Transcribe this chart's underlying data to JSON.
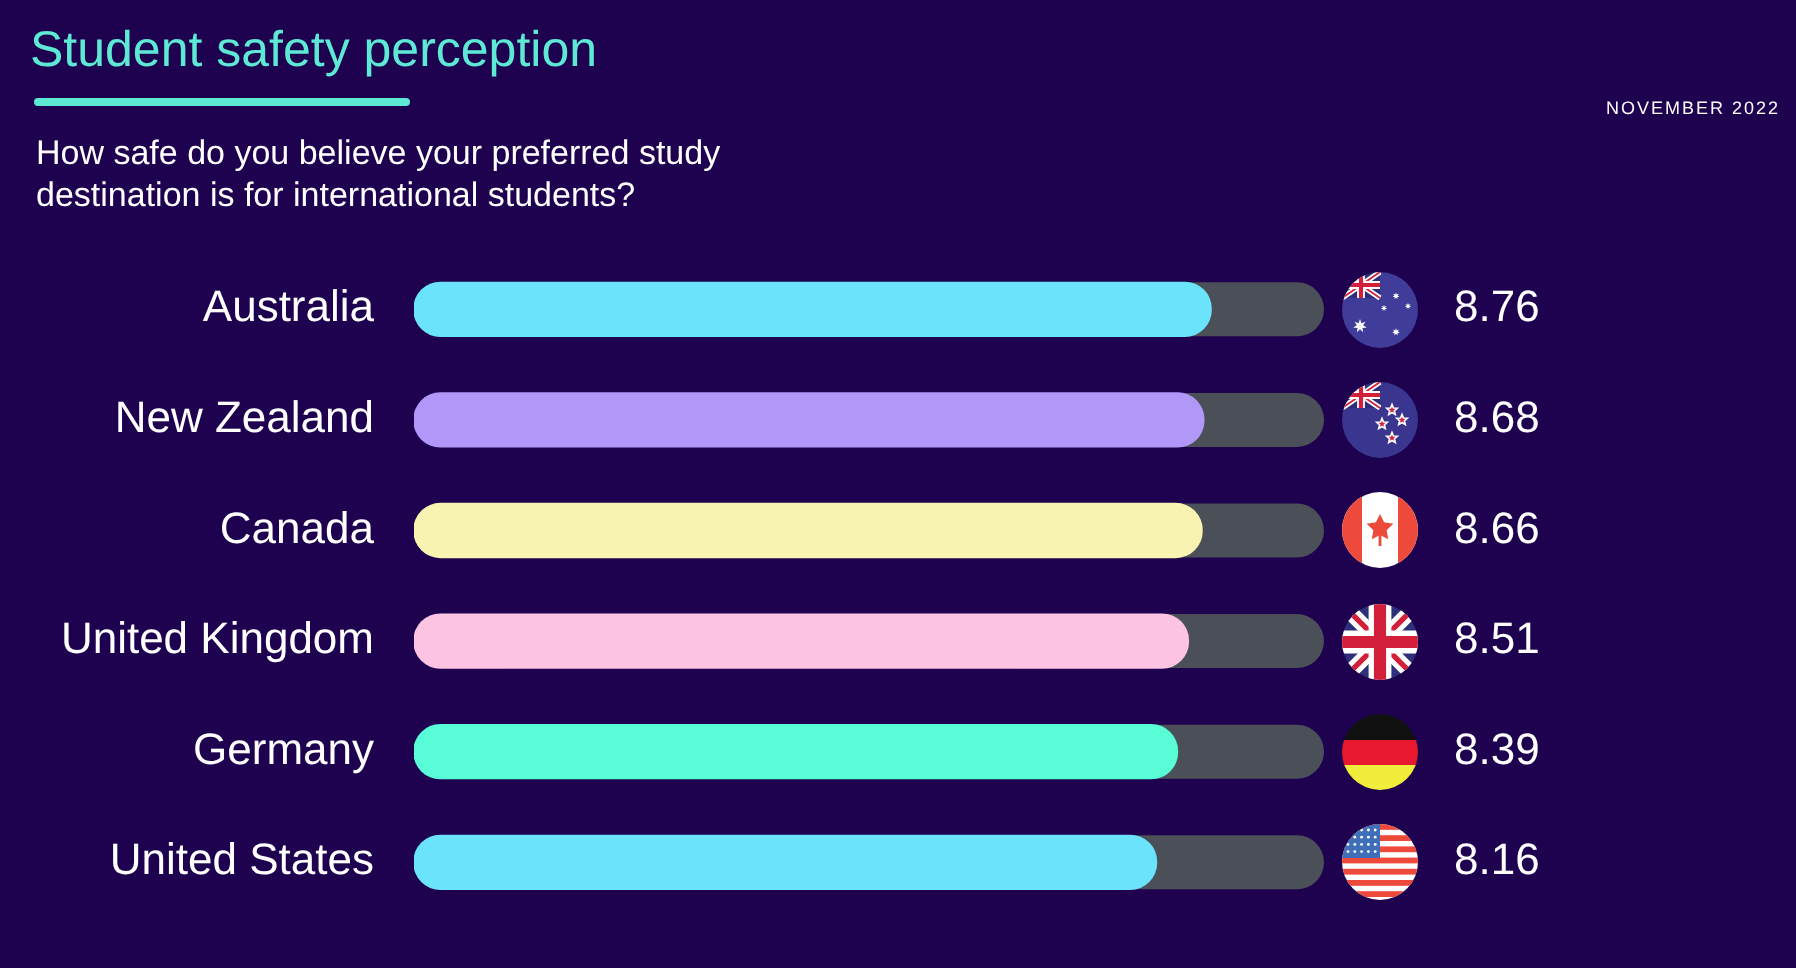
{
  "chart_data": {
    "type": "bar",
    "orientation": "horizontal",
    "title": "Student safety perception",
    "subtitle": "How safe do you believe your preferred study destination is for international students?",
    "annotations": [
      "NOVEMBER 2022"
    ],
    "categories": [
      "Australia",
      "New Zealand",
      "Canada",
      "United Kingdom",
      "Germany",
      "United States"
    ],
    "values": [
      8.76,
      8.68,
      8.66,
      8.51,
      8.39,
      8.16
    ],
    "colors": [
      "#6be3fb",
      "#b197f7",
      "#f8f3b1",
      "#fdc3e3",
      "#58fdd8",
      "#6be3fb"
    ],
    "xlim": [
      0,
      10
    ],
    "tick_labels": "y",
    "data_labels": true
  }
}
